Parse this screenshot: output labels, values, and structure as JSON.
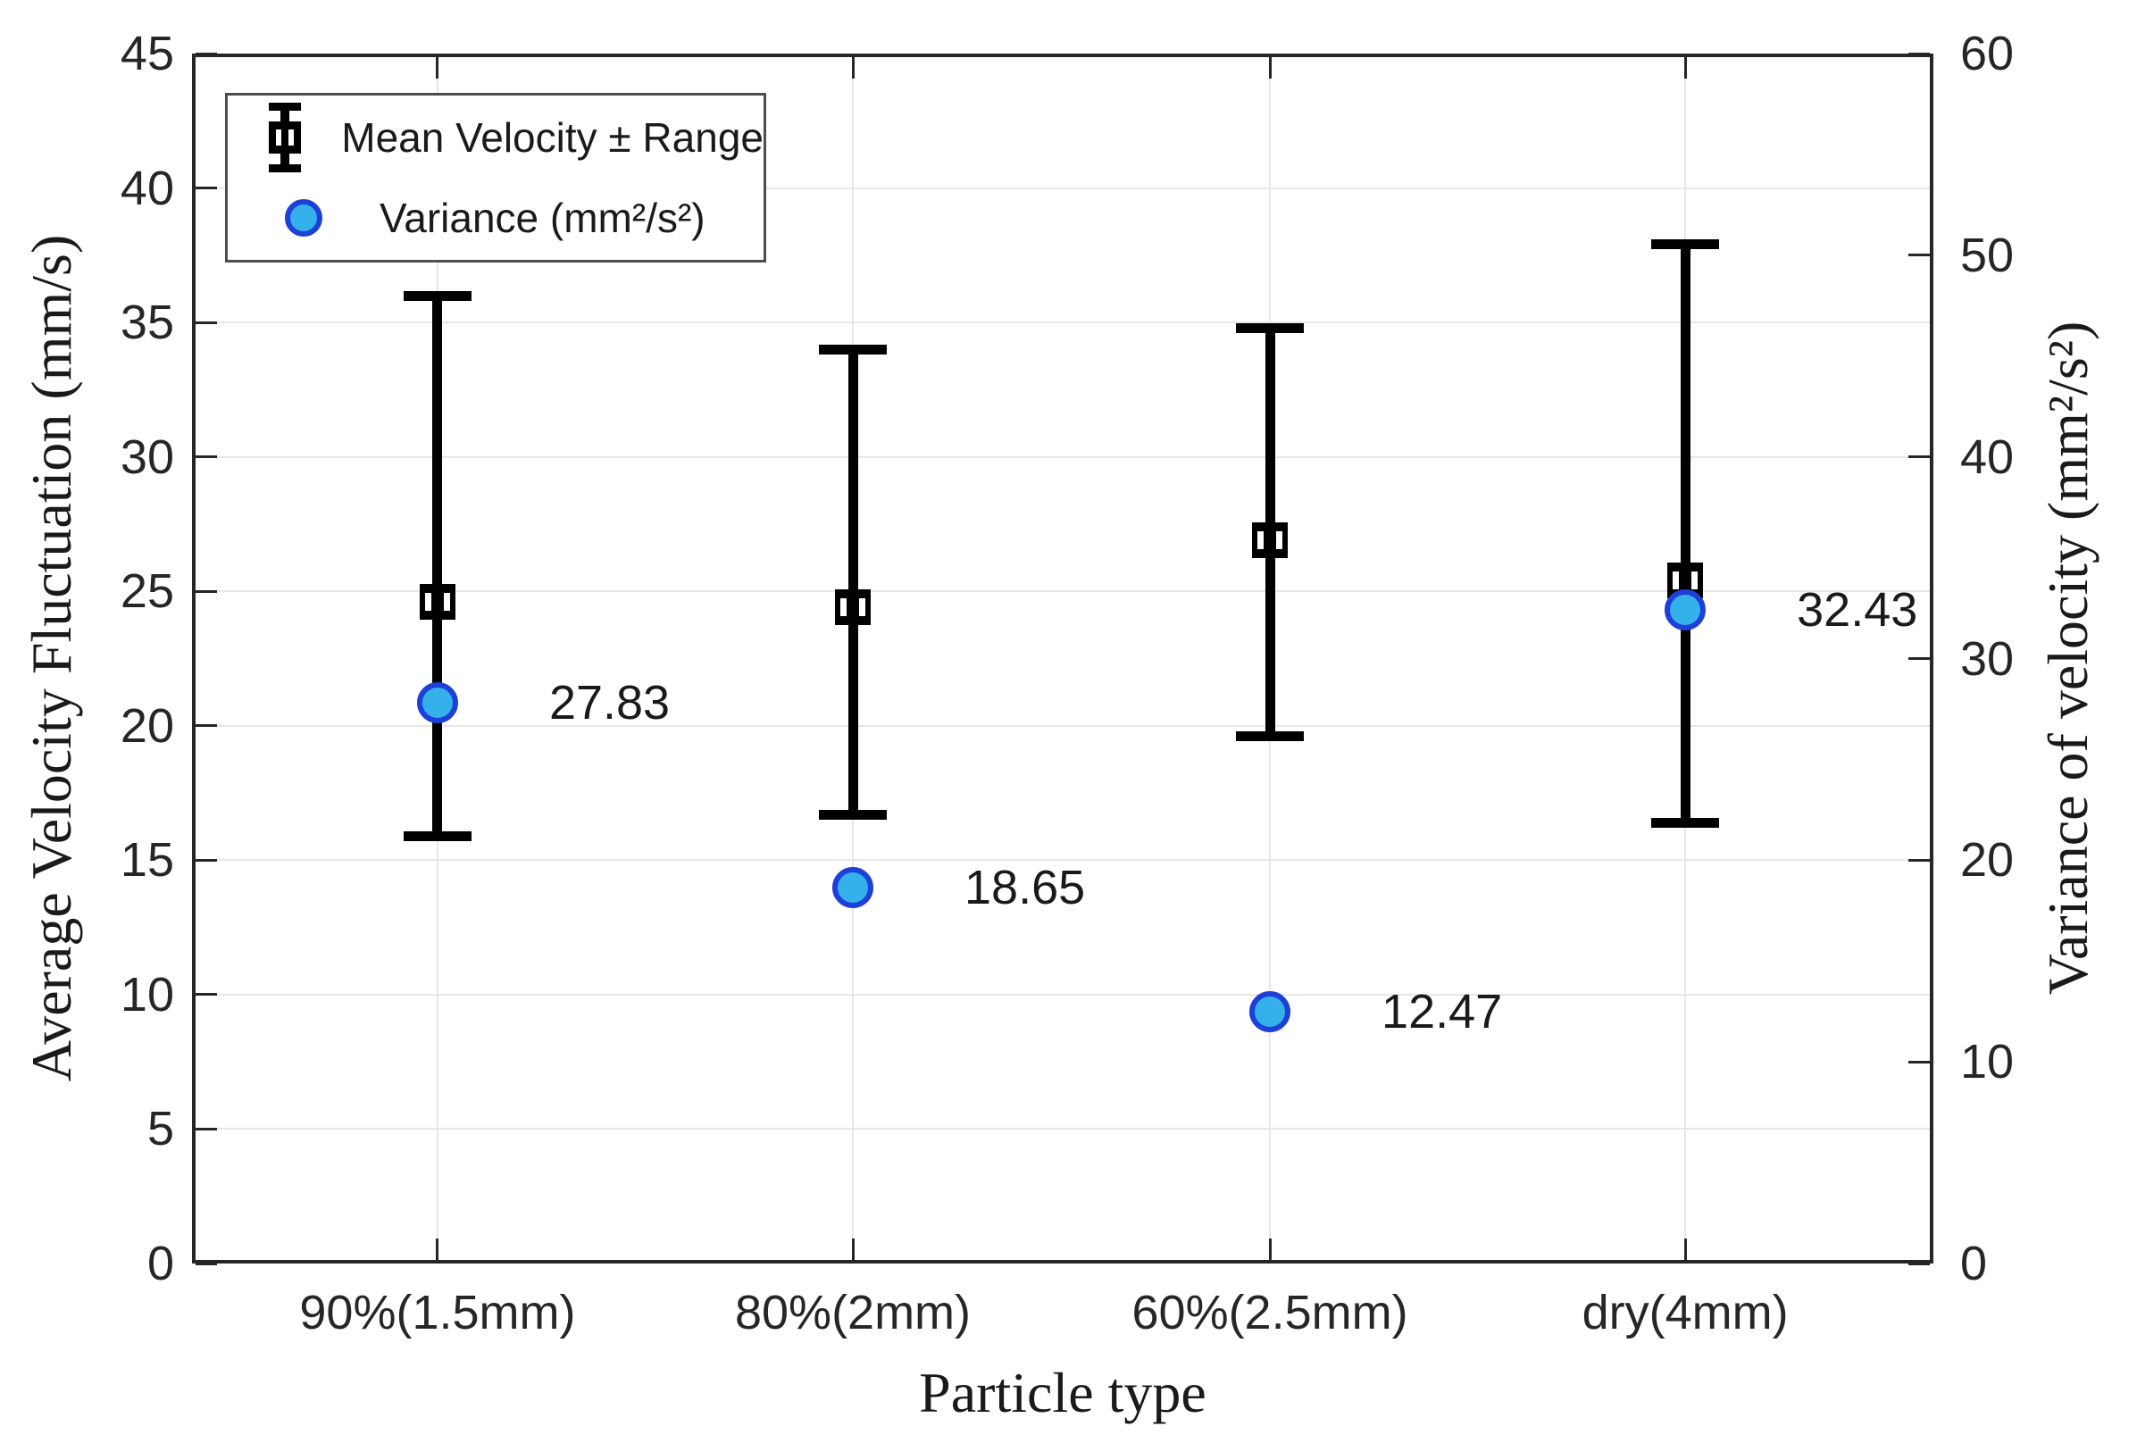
{
  "figure": {
    "background": "#ffffff",
    "axis_color": "#262626",
    "grid_color": "#e7e7e7",
    "errorbar_color": "#000000",
    "variance_marker_fill": "#34b1eb",
    "variance_marker_edge": "#1e3fd8"
  },
  "titles": {
    "left_axis": "Average Velocity Fluctuation (mm/s)",
    "right_axis": "Variance of velocity (mm²/s²)",
    "x_axis": "Particle type"
  },
  "legend": {
    "items": [
      {
        "icon": "errorbar-marker-icon",
        "label": "Mean Velocity ± Range"
      },
      {
        "icon": "variance-marker-icon",
        "label": "Variance (mm²/s²)"
      }
    ],
    "position": "top-left"
  },
  "chart_data": {
    "type": "scatter",
    "subtype": "errorbar-with-secondary-scatter",
    "categories": [
      "90%(1.5mm)",
      "80%(2mm)",
      "60%(2.5mm)",
      "dry(4mm)"
    ],
    "series": [
      {
        "name": "Mean Velocity ± Range",
        "axis": "left",
        "means": [
          24.6,
          24.4,
          26.9,
          25.4
        ],
        "upper": [
          36.0,
          34.0,
          34.8,
          37.9
        ],
        "lower": [
          15.9,
          16.7,
          19.6,
          16.4
        ]
      },
      {
        "name": "Variance (mm²/s²)",
        "axis": "right",
        "values": [
          27.83,
          18.65,
          12.47,
          32.43
        ],
        "labels": [
          "27.83",
          "18.65",
          "12.47",
          "32.43"
        ]
      }
    ],
    "left_axis": {
      "label": "Average Velocity Fluctuation (mm/s)",
      "min": 0,
      "max": 45,
      "tick_step": 5
    },
    "right_axis": {
      "label": "Variance of velocity (mm²/s²)",
      "min": 0,
      "max": 60,
      "tick_step": 10
    },
    "xlabel": "Particle type",
    "grid": true,
    "legend_position": "top-left"
  }
}
